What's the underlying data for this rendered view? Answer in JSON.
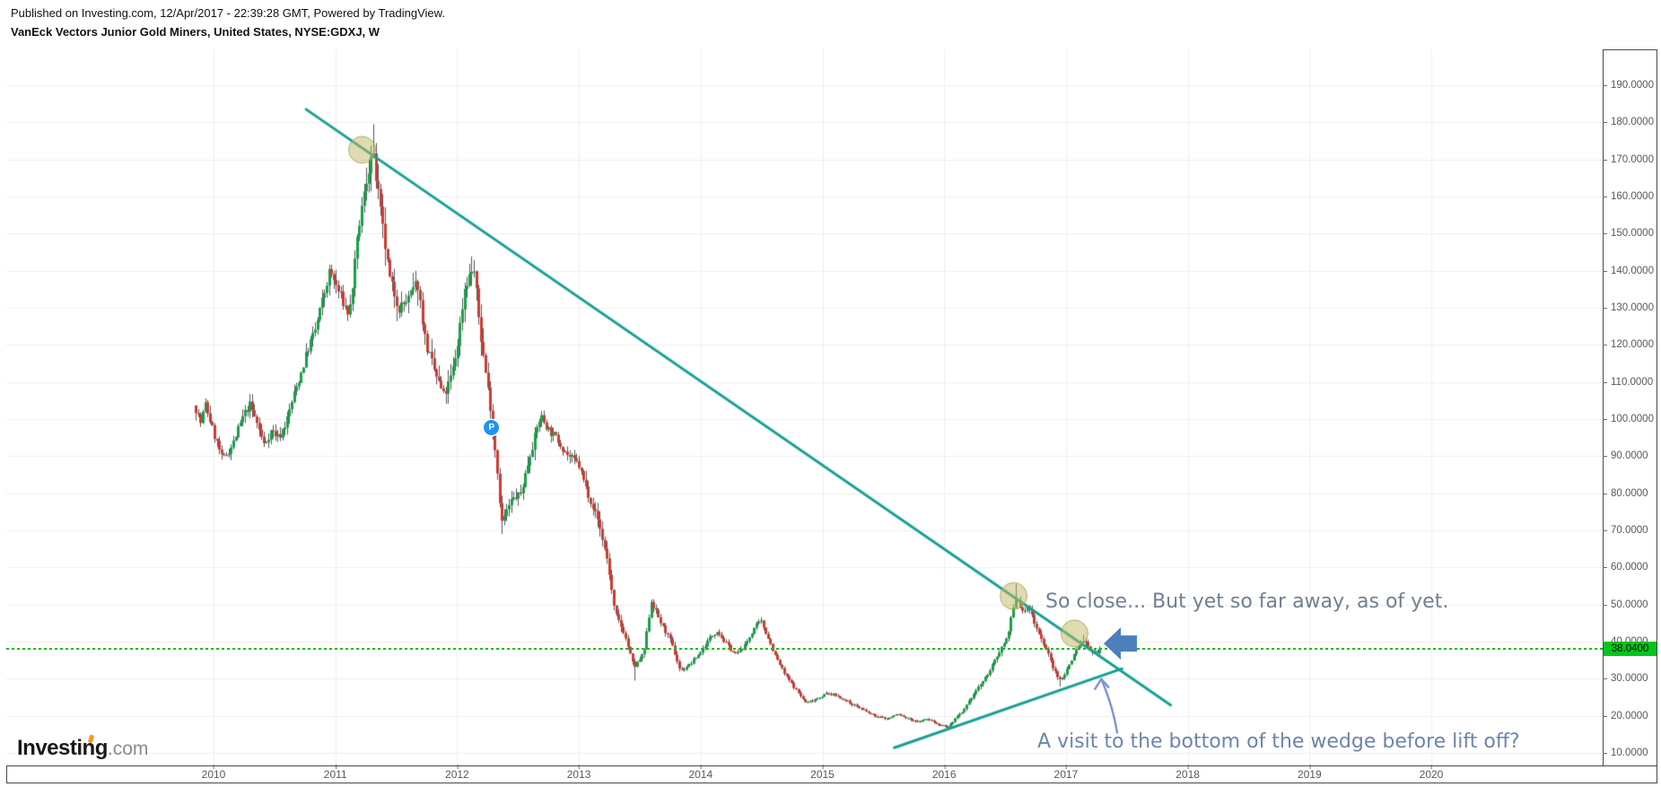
{
  "header": {
    "published_line": "Published on Investing.com, 12/Apr/2017 - 22:39:28 GMT, Powered by TradingView.",
    "title_line": "VanEck Vectors Junior Gold Miners, United States, NYSE:GDXJ, W"
  },
  "logo": {
    "brand": "Investing",
    "suffix": ".com"
  },
  "price_axis": {
    "labels": [
      "190.0000",
      "180.0000",
      "170.0000",
      "160.0000",
      "150.0000",
      "140.0000",
      "130.0000",
      "120.0000",
      "110.0000",
      "100.0000",
      "90.0000",
      "80.0000",
      "70.0000",
      "60.0000",
      "50.0000",
      "40.0000",
      "30.0000",
      "20.0000",
      "10.0000"
    ],
    "values": [
      190,
      180,
      170,
      160,
      150,
      140,
      130,
      120,
      110,
      100,
      90,
      80,
      70,
      60,
      50,
      40,
      30,
      20,
      10
    ]
  },
  "time_axis": {
    "labels": [
      "2010",
      "2011",
      "2012",
      "2013",
      "2014",
      "2015",
      "2016",
      "2017",
      "2018",
      "2019",
      "2020"
    ]
  },
  "last_price_label": "38.0400",
  "marker_p_label": "P",
  "annotations": {
    "so_close_text": "So close... But yet so far away, as of yet.",
    "wedge_text": "A visit to the bottom of the wedge before lift off?"
  },
  "colors": {
    "candle_up": "#18a048",
    "candle_down": "#cc3b31",
    "wick": "#54585e",
    "grid": "#efefef",
    "trendline": "#16a195",
    "circle_fill": "rgba(193,183,98,0.5)",
    "circle_stroke": "rgba(158,148,62,0.7)",
    "last_price_line": "#00bd12",
    "last_price_bg": "#00c41e",
    "big_arrow": "#4c80bd",
    "thin_arrow": "#8295d6",
    "axis_text": "#55585c",
    "p_marker_bg": "#2093ef"
  },
  "chart_data": {
    "type": "candlestick",
    "title": "VanEck Vectors Junior Gold Miners",
    "symbol": "NYSE:GDXJ",
    "timeframe": "W",
    "y_axis": {
      "min": 10,
      "max": 190,
      "step": 10,
      "side": "right",
      "grid": true
    },
    "x_axis": {
      "start_year": 2010,
      "end_year": 2020,
      "grid": true
    },
    "last_price": 38.04,
    "weekly_close_anchors": [
      [
        2009.86,
        103
      ],
      [
        2009.9,
        99
      ],
      [
        2009.94,
        104
      ],
      [
        2010.0,
        97
      ],
      [
        2010.08,
        89
      ],
      [
        2010.16,
        93
      ],
      [
        2010.24,
        100
      ],
      [
        2010.3,
        104
      ],
      [
        2010.36,
        99
      ],
      [
        2010.42,
        93
      ],
      [
        2010.48,
        97
      ],
      [
        2010.54,
        95
      ],
      [
        2010.6,
        99
      ],
      [
        2010.66,
        106
      ],
      [
        2010.72,
        112
      ],
      [
        2010.78,
        119
      ],
      [
        2010.84,
        124
      ],
      [
        2010.9,
        132
      ],
      [
        2010.96,
        140
      ],
      [
        2011.05,
        133
      ],
      [
        2011.12,
        128
      ],
      [
        2011.2,
        152
      ],
      [
        2011.27,
        166
      ],
      [
        2011.31,
        172
      ],
      [
        2011.38,
        155
      ],
      [
        2011.45,
        138
      ],
      [
        2011.53,
        130
      ],
      [
        2011.6,
        132
      ],
      [
        2011.68,
        137
      ],
      [
        2011.75,
        120
      ],
      [
        2011.83,
        112
      ],
      [
        2011.9,
        106
      ],
      [
        2011.96,
        112
      ],
      [
        2012.0,
        118
      ],
      [
        2012.07,
        136
      ],
      [
        2012.14,
        141
      ],
      [
        2012.2,
        122
      ],
      [
        2012.28,
        103
      ],
      [
        2012.33,
        88
      ],
      [
        2012.37,
        72
      ],
      [
        2012.45,
        78
      ],
      [
        2012.53,
        80
      ],
      [
        2012.6,
        90
      ],
      [
        2012.69,
        101
      ],
      [
        2012.76,
        97
      ],
      [
        2012.84,
        94
      ],
      [
        2012.92,
        90
      ],
      [
        2013.0,
        88
      ],
      [
        2013.08,
        80
      ],
      [
        2013.16,
        73
      ],
      [
        2013.24,
        62
      ],
      [
        2013.3,
        48
      ],
      [
        2013.38,
        42
      ],
      [
        2013.46,
        33
      ],
      [
        2013.54,
        37
      ],
      [
        2013.6,
        51
      ],
      [
        2013.68,
        45
      ],
      [
        2013.76,
        40
      ],
      [
        2013.84,
        32
      ],
      [
        2013.92,
        34
      ],
      [
        2014.0,
        37
      ],
      [
        2014.08,
        41
      ],
      [
        2014.14,
        43
      ],
      [
        2014.2,
        40
      ],
      [
        2014.29,
        36.5
      ],
      [
        2014.37,
        39
      ],
      [
        2014.45,
        44
      ],
      [
        2014.5,
        45.5
      ],
      [
        2014.56,
        41
      ],
      [
        2014.62,
        36
      ],
      [
        2014.7,
        31
      ],
      [
        2014.79,
        27
      ],
      [
        2014.87,
        23.5
      ],
      [
        2014.95,
        24.5
      ],
      [
        2015.04,
        26
      ],
      [
        2015.12,
        25.5
      ],
      [
        2015.2,
        24
      ],
      [
        2015.29,
        22.5
      ],
      [
        2015.37,
        21
      ],
      [
        2015.45,
        19.8
      ],
      [
        2015.54,
        19.2
      ],
      [
        2015.62,
        20.5
      ],
      [
        2015.7,
        19.3
      ],
      [
        2015.79,
        18.4
      ],
      [
        2015.87,
        19.2
      ],
      [
        2015.95,
        17.8
      ],
      [
        2016.04,
        17.0
      ],
      [
        2016.1,
        19.5
      ],
      [
        2016.16,
        21
      ],
      [
        2016.22,
        24.5
      ],
      [
        2016.28,
        27.5
      ],
      [
        2016.34,
        30
      ],
      [
        2016.4,
        33.5
      ],
      [
        2016.46,
        37.5
      ],
      [
        2016.52,
        41
      ],
      [
        2016.56,
        47
      ],
      [
        2016.6,
        52
      ],
      [
        2016.65,
        48
      ],
      [
        2016.7,
        49.5
      ],
      [
        2016.75,
        45
      ],
      [
        2016.8,
        41
      ],
      [
        2016.85,
        37.5
      ],
      [
        2016.9,
        33
      ],
      [
        2016.95,
        29.5
      ],
      [
        2017.0,
        31.5
      ],
      [
        2017.05,
        35
      ],
      [
        2017.1,
        38.5
      ],
      [
        2017.15,
        40.5
      ],
      [
        2017.19,
        38.5
      ],
      [
        2017.22,
        36.8
      ],
      [
        2017.25,
        37.5
      ],
      [
        2017.28,
        38.04
      ]
    ],
    "forced_extremes": [
      [
        2011.31,
        "h",
        179.5
      ],
      [
        2012.37,
        "l",
        69
      ],
      [
        2013.46,
        "l",
        29.5
      ],
      [
        2014.5,
        "h",
        46.5
      ],
      [
        2016.04,
        "l",
        16.2
      ],
      [
        2016.6,
        "h",
        55.5
      ],
      [
        2016.95,
        "l",
        27.9
      ],
      [
        2017.15,
        "h",
        41.8
      ]
    ],
    "trendlines": [
      {
        "name": "downtrend-resistance",
        "t1": 2010.76,
        "p1": 183.5,
        "t2": 2017.86,
        "p2": 22.9
      },
      {
        "name": "wedge-support",
        "t1": 2015.59,
        "p1": 11.4,
        "t2": 2017.46,
        "p2": 32.7
      }
    ],
    "highlight_circles": [
      {
        "t": 2011.22,
        "p": 172.6
      },
      {
        "t": 2016.57,
        "p": 52.3
      },
      {
        "t": 2017.07,
        "p": 42.2
      }
    ],
    "big_arrow": {
      "t": 2017.31,
      "p": 39.5,
      "direction": "left"
    },
    "thin_arrow": {
      "tail_t": 2017.42,
      "tail_p": 15.5,
      "tip_t": 2017.29,
      "tip_p": 29.9
    },
    "p_marker": {
      "t": 2012.28,
      "p": 97.8
    }
  }
}
